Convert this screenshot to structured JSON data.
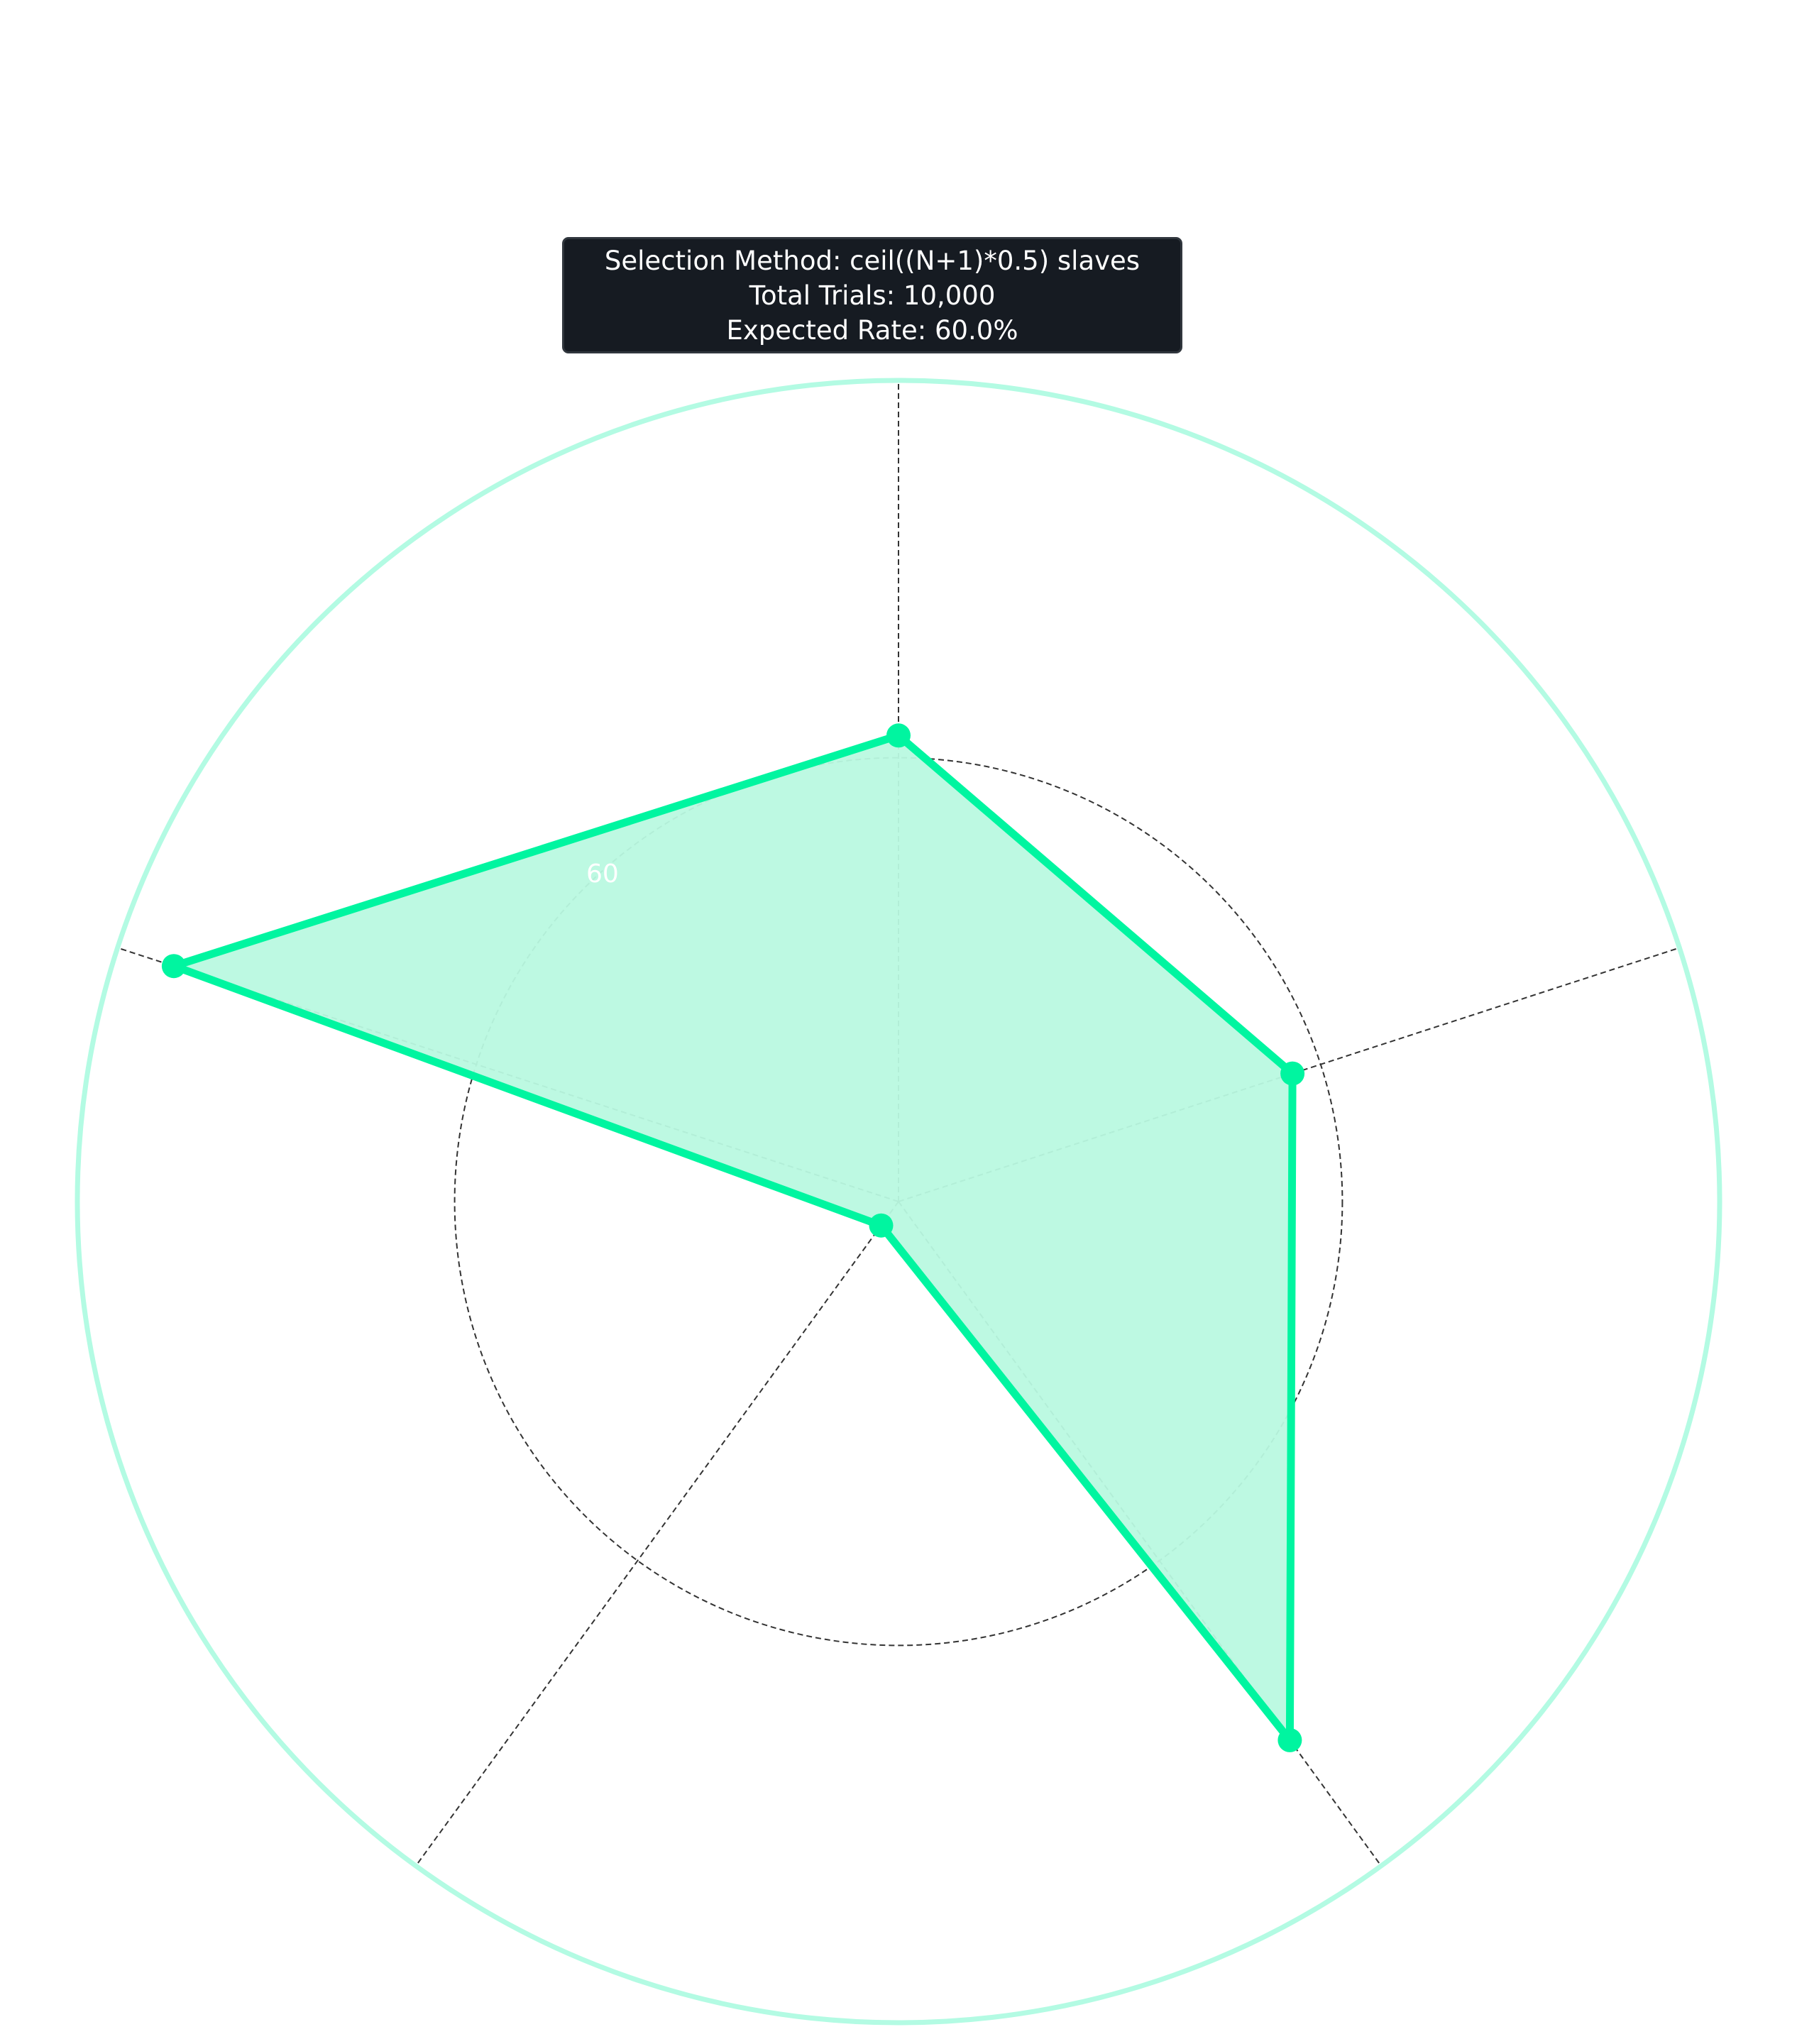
{
  "info_box": {
    "line1": "Selection Method: ceil((N+1)*0.5) slaves",
    "line2": "Total Trials: 10,000",
    "line3": "Expected Rate: 60.0%"
  },
  "colors": {
    "series": "#00f5a0",
    "fill": "#b9f9e0",
    "outer_ring": "#b3fbe3",
    "grid": "#333333",
    "box_bg": "#161b22"
  },
  "chart_data": {
    "type": "radar",
    "title": "",
    "axes_count": 5,
    "rmax": 111,
    "rgrid": [
      60
    ],
    "rtick_labels": [
      "60"
    ],
    "grid": true,
    "series": [
      {
        "values": [
          63,
          56,
          90,
          4,
          103
        ]
      }
    ]
  }
}
